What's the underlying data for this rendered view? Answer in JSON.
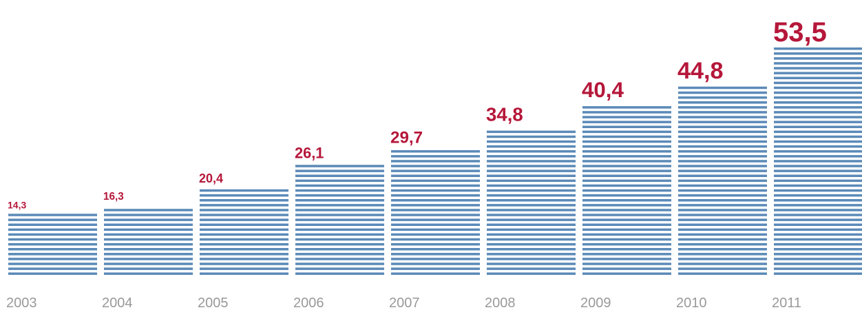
{
  "chart_data": {
    "type": "bar",
    "categories": [
      "2003",
      "2004",
      "2005",
      "2006",
      "2007",
      "2008",
      "2009",
      "2010",
      "2011"
    ],
    "values": [
      14.3,
      16.3,
      20.4,
      26.1,
      29.7,
      34.8,
      40.4,
      44.8,
      53.5
    ],
    "value_labels": [
      "14,3",
      "16,3",
      "20,4",
      "26,1",
      "29,7",
      "34,8",
      "40,4",
      "44,8",
      "53,5"
    ],
    "title": "",
    "xlabel": "",
    "ylabel": "",
    "ylim": [
      0,
      53.5
    ],
    "grid": false,
    "legend": "none",
    "bar_style": "horizontal stripes",
    "colors": {
      "bar": "#5b8ab8",
      "value_label": "#b5173a",
      "year_label": "#999999"
    }
  }
}
